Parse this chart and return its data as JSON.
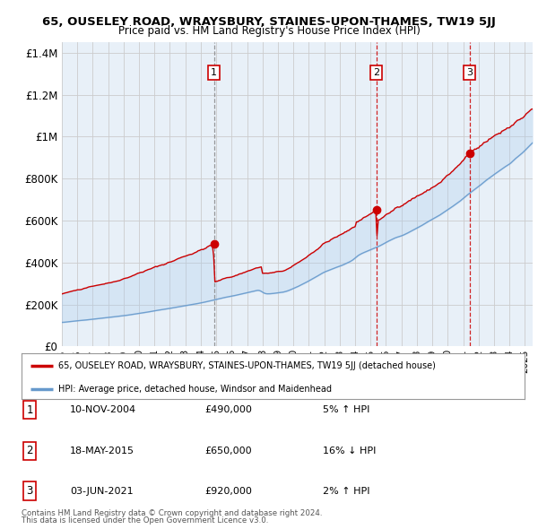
{
  "title": "65, OUSELEY ROAD, WRAYSBURY, STAINES-UPON-THAMES, TW19 5JJ",
  "subtitle": "Price paid vs. HM Land Registry's House Price Index (HPI)",
  "yticks": [
    0,
    200000,
    400000,
    600000,
    800000,
    1000000,
    1200000,
    1400000
  ],
  "ytick_labels": [
    "£0",
    "£200K",
    "£400K",
    "£600K",
    "£800K",
    "£1M",
    "£1.2M",
    "£1.4M"
  ],
  "xmin": 1995.0,
  "xmax": 2025.5,
  "ymin": 0,
  "ymax": 1450000,
  "sale_dates": [
    2004.86,
    2015.38,
    2021.42
  ],
  "sale_prices": [
    490000,
    650000,
    920000
  ],
  "sale_labels": [
    "1",
    "2",
    "3"
  ],
  "sale_info": [
    [
      "1",
      "10-NOV-2004",
      "£490,000",
      "5% ↑ HPI"
    ],
    [
      "2",
      "18-MAY-2015",
      "£650,000",
      "16% ↓ HPI"
    ],
    [
      "3",
      "03-JUN-2021",
      "£920,000",
      "2% ↑ HPI"
    ]
  ],
  "line_color_price": "#cc0000",
  "line_color_hpi": "#6699cc",
  "fill_color": "#ddeeff",
  "dashed_color_1": "#888888",
  "dashed_color_23": "#cc0000",
  "marker_box_color": "#cc0000",
  "legend_label_price": "65, OUSELEY ROAD, WRAYSBURY, STAINES-UPON-THAMES, TW19 5JJ (detached house)",
  "legend_label_hpi": "HPI: Average price, detached house, Windsor and Maidenhead",
  "footer1": "Contains HM Land Registry data © Crown copyright and database right 2024.",
  "footer2": "This data is licensed under the Open Government Licence v3.0.",
  "bg_color": "#ffffff",
  "plot_bg_color": "#ffffff",
  "grid_color": "#cccccc"
}
